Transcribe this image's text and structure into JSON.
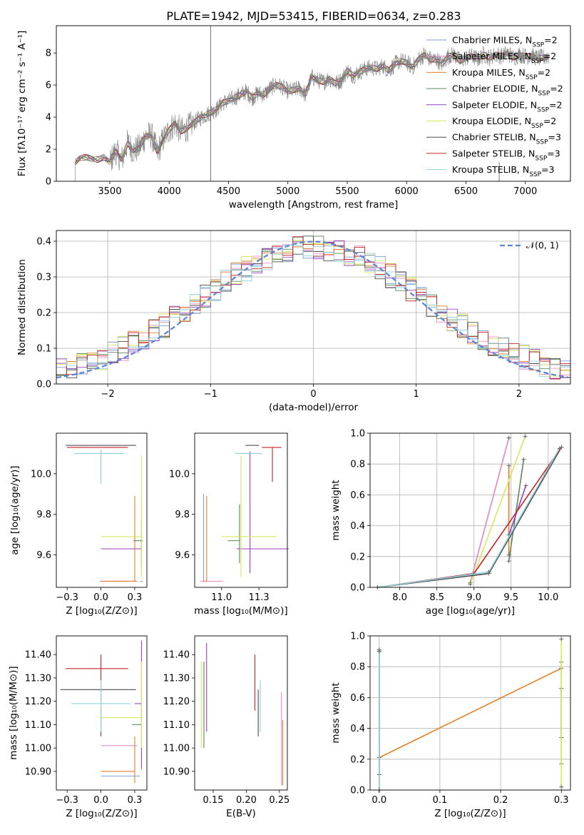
{
  "chart_data": [
    {
      "id": "spectrum",
      "type": "line",
      "title": "PLATE=1942, MJD=53415, FIBERID=0634, z=0.283",
      "xlabel": "wavelength [Angstrom, rest frame]",
      "ylabel": "Flux [fλ10⁻¹⁷ erg cm⁻² s⁻¹ A⁻¹]",
      "xlim": [
        3050,
        7380
      ],
      "ylim": [
        0,
        9.7
      ],
      "xticks": [
        3500,
        4000,
        4500,
        5000,
        5500,
        6000,
        6500,
        7000
      ],
      "yticks": [
        0,
        2,
        4,
        6,
        8
      ],
      "grid": false,
      "legend_position": "right",
      "observed": {
        "color": "#7f7f7f",
        "x": [
          3210,
          3250,
          3300,
          3350,
          3400,
          3450,
          3500,
          3550,
          3600,
          3650,
          3700,
          3750,
          3800,
          3850,
          3900,
          3950,
          4000,
          4050,
          4100,
          4150,
          4200,
          4250,
          4300,
          4350,
          4400,
          4450,
          4500,
          4550,
          4600,
          4650,
          4700,
          4750,
          4800,
          4850,
          4900,
          4950,
          5000,
          5050,
          5100,
          5150,
          5200,
          5250,
          5300,
          5350,
          5400,
          5450,
          5500,
          5550,
          5600,
          5650,
          5700,
          5750,
          5800,
          5850,
          5900,
          5950,
          6000,
          6050,
          6100,
          6150,
          6200,
          6250,
          6300,
          6350,
          6400,
          6450,
          6500,
          6550,
          6600,
          6650,
          6700,
          6750,
          6800,
          6850,
          6900,
          6950,
          7000,
          7050,
          7100,
          7150,
          7200
        ],
        "y": [
          1.2,
          1.45,
          1.5,
          1.4,
          1.35,
          1.5,
          1.2,
          1.9,
          1.3,
          2.4,
          1.9,
          2.1,
          2.8,
          2.9,
          1.8,
          2.6,
          3.2,
          3.6,
          3.1,
          3.3,
          3.6,
          3.9,
          4.1,
          4.3,
          4.5,
          4.9,
          5.0,
          5.2,
          5.4,
          5.6,
          5.2,
          5.5,
          5.4,
          5.8,
          6.0,
          5.9,
          5.6,
          5.7,
          5.8,
          5.4,
          6.5,
          6.3,
          6.2,
          6.4,
          6.1,
          6.3,
          6.9,
          6.6,
          6.8,
          7.0,
          7.1,
          7.0,
          7.2,
          6.9,
          7.3,
          7.5,
          7.4,
          7.1,
          7.6,
          7.9,
          7.6,
          7.6,
          7.3,
          7.8,
          7.9,
          7.5,
          7.7,
          7.8,
          7.6,
          7.9,
          7.7,
          7.9,
          7.8,
          8.0,
          7.7,
          7.9,
          7.8,
          7.8,
          7.7,
          7.7,
          7.8
        ]
      },
      "spikes": [
        {
          "x": 4350,
          "y": 9.7
        },
        {
          "x": 6780,
          "y": 1.2
        }
      ],
      "series": [
        {
          "name": "Chabrier MILES, N",
          "sub": "SSP",
          "suffix": "=2",
          "color": "#7f9bd8"
        },
        {
          "name": "Salpeter MILES, N",
          "sub": "SSP",
          "suffix": "=2",
          "color": "#e88fc7"
        },
        {
          "name": "Kroupa MILES, N",
          "sub": "SSP",
          "suffix": "=2",
          "color": "#e07f2a"
        },
        {
          "name": "Chabrier ELODIE, N",
          "sub": "SSP",
          "suffix": "=2",
          "color": "#5a8a5a"
        },
        {
          "name": "Salpeter ELODIE, N",
          "sub": "SSP",
          "suffix": "=2",
          "color": "#9b3fbf"
        },
        {
          "name": "Kroupa ELODIE, N",
          "sub": "SSP",
          "suffix": "=2",
          "color": "#d6e85a"
        },
        {
          "name": "Chabrier STELIB, N",
          "sub": "SSP",
          "suffix": "=3",
          "color": "#4d4d4d"
        },
        {
          "name": "Salpeter STELIB, N",
          "sub": "SSP",
          "suffix": "=3",
          "color": "#c42424"
        },
        {
          "name": "Kroupa STELIB, N",
          "sub": "SSP",
          "suffix": "=3",
          "color": "#8fd0de"
        }
      ]
    },
    {
      "id": "residuals",
      "type": "histogram",
      "xlabel": "(data-model)/error",
      "ylabel": "Normed distribution",
      "xlim": [
        -2.5,
        2.5
      ],
      "ylim": [
        0,
        0.43
      ],
      "xticks": [
        -2,
        -1,
        0,
        1,
        2
      ],
      "yticks": [
        0.0,
        0.1,
        0.2,
        0.3,
        0.4
      ],
      "grid": true,
      "bins": 50,
      "reference": {
        "name": "𝒩(0, 1)",
        "mu": 0,
        "sigma": 1,
        "color": "#5b87d6",
        "style": "dashed"
      },
      "legend_position": "top-right"
    },
    {
      "id": "age_vs_Z",
      "type": "errorbar",
      "xlabel": "Z [log₁₀(Z/Z⊙)]",
      "ylabel": "age  [log₁₀(age/yr)]",
      "xlim": [
        -0.33,
        0.34
      ],
      "ylim": [
        9.44,
        10.2
      ],
      "xticks": [
        -0.25,
        0.0,
        0.25
      ],
      "yticks": [
        9.6,
        9.8,
        10.0
      ],
      "grid": false,
      "points": [
        {
          "series": 0,
          "x": 0.29,
          "y": 9.47,
          "xerr": [
            0.0,
            0.02
          ],
          "yerr": [
            0.0,
            0.0
          ]
        },
        {
          "series": 1,
          "x": 0.0,
          "y": 9.47,
          "xerr": [
            0.01,
            0.27
          ],
          "yerr": [
            0.0,
            0.0
          ]
        },
        {
          "series": 2,
          "x": 0.25,
          "y": 9.47,
          "xerr": [
            0.25,
            0.01
          ],
          "yerr": [
            0.0,
            0.42
          ]
        },
        {
          "series": 3,
          "x": 0.3,
          "y": 9.67,
          "xerr": [
            0.06,
            0.01
          ],
          "yerr": [
            0.1,
            0.1
          ]
        },
        {
          "series": 4,
          "x": 0.3,
          "y": 9.63,
          "xerr": [
            0.3,
            0.0
          ],
          "yerr": [
            0.1,
            0.05
          ]
        },
        {
          "series": 5,
          "x": 0.3,
          "y": 9.69,
          "xerr": [
            0.3,
            0.0
          ],
          "yerr": [
            0.2,
            0.4
          ]
        },
        {
          "series": 6,
          "x": 0.0,
          "y": 10.14,
          "xerr": [
            0.26,
            0.26
          ],
          "yerr": [
            0.0,
            0.0
          ]
        },
        {
          "series": 7,
          "x": -0.02,
          "y": 10.13,
          "xerr": [
            0.23,
            0.22
          ],
          "yerr": [
            0.0,
            0.0
          ]
        },
        {
          "series": 8,
          "x": 0.0,
          "y": 10.1,
          "xerr": [
            0.2,
            0.17
          ],
          "yerr": [
            0.15,
            0.02
          ]
        }
      ]
    },
    {
      "id": "age_vs_mass",
      "type": "errorbar",
      "xlabel": "mass [log₁₀(M/M⊙)]",
      "ylabel": "",
      "xlim": [
        10.82,
        11.44
      ],
      "ylim": [
        9.44,
        10.2
      ],
      "xticks": [
        11.0,
        11.25
      ],
      "yticks": [
        9.6,
        9.8,
        10.0
      ],
      "grid": false,
      "points": [
        {
          "series": 0,
          "x": 10.88,
          "y": 9.47,
          "xerr": [
            0.0,
            0.0
          ],
          "yerr": [
            0.0,
            0.43
          ]
        },
        {
          "series": 1,
          "x": 11.01,
          "y": 9.47,
          "xerr": [
            0.15,
            0.0
          ],
          "yerr": [
            0.0,
            0.0
          ]
        },
        {
          "series": 2,
          "x": 10.9,
          "y": 9.47,
          "xerr": [
            0.02,
            0.0
          ],
          "yerr": [
            0.0,
            0.42
          ]
        },
        {
          "series": 3,
          "x": 11.12,
          "y": 9.67,
          "xerr": [
            0.08,
            0.0
          ],
          "yerr": [
            0.11,
            0.18
          ]
        },
        {
          "series": 4,
          "x": 11.19,
          "y": 9.63,
          "xerr": [
            0.09,
            0.26
          ],
          "yerr": [
            0.12,
            0.48
          ]
        },
        {
          "series": 5,
          "x": 11.13,
          "y": 9.69,
          "xerr": [
            0.13,
            0.24
          ],
          "yerr": [
            0.2,
            0.4
          ]
        },
        {
          "series": 6,
          "x": 11.25,
          "y": 10.14,
          "xerr": [
            0.09,
            0.0
          ],
          "yerr": [
            0.0,
            0.0
          ]
        },
        {
          "series": 7,
          "x": 11.34,
          "y": 10.13,
          "xerr": [
            0.07,
            0.06
          ],
          "yerr": [
            0.17,
            0.0
          ]
        },
        {
          "series": 8,
          "x": 11.19,
          "y": 10.1,
          "xerr": [
            0.1,
            0.08
          ],
          "yerr": [
            0.0,
            0.0
          ]
        }
      ]
    },
    {
      "id": "weight_vs_age",
      "type": "line",
      "xlabel": "age  [log₁₀(age/yr)]",
      "ylabel": "mass weight",
      "xlim": [
        7.6,
        10.3
      ],
      "ylim": [
        0,
        1.0
      ],
      "xticks": [
        8.0,
        8.5,
        9.0,
        9.5,
        10.0
      ],
      "yticks": [
        0.0,
        0.2,
        0.4,
        0.6,
        0.8,
        1.0
      ],
      "grid": true,
      "series_points": [
        {
          "series": 0,
          "x": [
            8.95,
            9.47
          ],
          "y": [
            0.03,
            0.97
          ]
        },
        {
          "series": 1,
          "x": [
            8.95,
            9.47
          ],
          "y": [
            0.03,
            0.97
          ]
        },
        {
          "series": 2,
          "x": [
            9.47,
            9.47
          ],
          "y": [
            0.21,
            0.79
          ]
        },
        {
          "series": 3,
          "x": [
            9.47,
            9.67
          ],
          "y": [
            0.17,
            0.83
          ]
        },
        {
          "series": 4,
          "x": [
            9.47,
            9.7
          ],
          "y": [
            0.34,
            0.66
          ]
        },
        {
          "series": 5,
          "x": [
            8.95,
            9.69
          ],
          "y": [
            0.02,
            0.98
          ]
        },
        {
          "series": 6,
          "x": [
            7.7,
            9.2,
            10.18
          ],
          "y": [
            0.0,
            0.09,
            0.91
          ]
        },
        {
          "series": 7,
          "x": [
            7.7,
            9.0,
            10.18
          ],
          "y": [
            0.0,
            0.09,
            0.91
          ]
        },
        {
          "series": 8,
          "x": [
            7.7,
            9.2,
            10.15
          ],
          "y": [
            0.0,
            0.1,
            0.9
          ]
        }
      ]
    },
    {
      "id": "mass_vs_Z",
      "type": "errorbar",
      "xlabel": "Z [log₁₀(Z/Z⊙)]",
      "ylabel": "mass [log₁₀(M/M⊙)]",
      "xlim": [
        -0.33,
        0.34
      ],
      "ylim": [
        10.82,
        11.48
      ],
      "xticks": [
        -0.25,
        0.0,
        0.25
      ],
      "yticks": [
        10.9,
        11.0,
        11.1,
        11.2,
        11.3,
        11.4
      ],
      "grid": false,
      "points": [
        {
          "series": 0,
          "x": 0.29,
          "y": 10.88,
          "xerr": [
            0.29,
            0.0
          ],
          "yerr": [
            0.0,
            0.0
          ]
        },
        {
          "series": 1,
          "x": 0.0,
          "y": 11.01,
          "xerr": [
            0.0,
            0.27
          ],
          "yerr": [
            0.0,
            0.0
          ]
        },
        {
          "series": 2,
          "x": 0.25,
          "y": 10.9,
          "xerr": [
            0.25,
            0.0
          ],
          "yerr": [
            0.05,
            0.15
          ]
        },
        {
          "series": 3,
          "x": 0.3,
          "y": 11.1,
          "xerr": [
            0.07,
            0.0
          ],
          "yerr": [
            0.0,
            0.0
          ]
        },
        {
          "series": 4,
          "x": 0.3,
          "y": 11.19,
          "xerr": [
            0.05,
            0.0
          ],
          "yerr": [
            0.28,
            0.27
          ]
        },
        {
          "series": 5,
          "x": 0.3,
          "y": 11.13,
          "xerr": [
            0.3,
            0.0
          ],
          "yerr": [
            0.13,
            0.24
          ]
        },
        {
          "series": 6,
          "x": 0.0,
          "y": 11.25,
          "xerr": [
            0.3,
            0.26
          ],
          "yerr": [
            0.2,
            0.0
          ]
        },
        {
          "series": 7,
          "x": 0.0,
          "y": 11.34,
          "xerr": [
            0.26,
            0.2
          ],
          "yerr": [
            0.1,
            0.06
          ]
        },
        {
          "series": 8,
          "x": 0.0,
          "y": 11.19,
          "xerr": [
            0.22,
            0.22
          ],
          "yerr": [
            0.12,
            0.1
          ]
        }
      ]
    },
    {
      "id": "mass_vs_ebv",
      "type": "errorbar",
      "xlabel": "E(B-V)",
      "ylabel": "",
      "xlim": [
        0.122,
        0.262
      ],
      "ylim": [
        10.82,
        11.48
      ],
      "xticks": [
        0.15,
        0.2,
        0.25
      ],
      "yticks": [
        10.9,
        11.0,
        11.1,
        11.2,
        11.3,
        11.4
      ],
      "grid": false,
      "points": [
        {
          "series": 0,
          "x": 0.253,
          "y": 10.88,
          "xerr": [
            0.0,
            0.0
          ],
          "yerr": [
            0.0,
            0.0
          ]
        },
        {
          "series": 1,
          "x": 0.253,
          "y": 11.01,
          "xerr": [
            0.0,
            0.0
          ],
          "yerr": [
            0.17,
            0.23
          ]
        },
        {
          "series": 2,
          "x": 0.255,
          "y": 10.9,
          "xerr": [
            0.0,
            0.0
          ],
          "yerr": [
            0.06,
            0.22
          ]
        },
        {
          "series": 3,
          "x": 0.136,
          "y": 11.1,
          "xerr": [
            0.0,
            0.0
          ],
          "yerr": [
            0.1,
            0.27
          ]
        },
        {
          "series": 4,
          "x": 0.14,
          "y": 11.19,
          "xerr": [
            0.0,
            0.0
          ],
          "yerr": [
            0.12,
            0.26
          ]
        },
        {
          "series": 5,
          "x": 0.132,
          "y": 11.13,
          "xerr": [
            0.0,
            0.0
          ],
          "yerr": [
            0.13,
            0.24
          ]
        },
        {
          "series": 6,
          "x": 0.218,
          "y": 11.25,
          "xerr": [
            0.0,
            0.0
          ],
          "yerr": [
            0.2,
            0.0
          ]
        },
        {
          "series": 7,
          "x": 0.213,
          "y": 11.34,
          "xerr": [
            0.0,
            0.0
          ],
          "yerr": [
            0.18,
            0.06
          ]
        },
        {
          "series": 8,
          "x": 0.221,
          "y": 11.19,
          "xerr": [
            0.0,
            0.0
          ],
          "yerr": [
            0.12,
            0.1
          ]
        }
      ]
    },
    {
      "id": "weight_vs_Z",
      "type": "line",
      "xlabel": "Z [log₁₀(Z/Z⊙)]",
      "ylabel": "mass weight",
      "xlim": [
        -0.015,
        0.315
      ],
      "ylim": [
        0,
        1.0
      ],
      "xticks": [
        0.0,
        0.1,
        0.2,
        0.3
      ],
      "yticks": [
        0.0,
        0.2,
        0.4,
        0.6,
        0.8,
        1.0
      ],
      "grid": true,
      "series_points": [
        {
          "series": 0,
          "x": [
            0.0,
            0.0
          ],
          "y": [
            0.1,
            0.9
          ]
        },
        {
          "series": 1,
          "x": [
            0.0,
            0.0
          ],
          "y": [
            0.1,
            0.9
          ]
        },
        {
          "series": 2,
          "x": [
            0.0,
            0.3
          ],
          "y": [
            0.21,
            0.79
          ]
        },
        {
          "series": 3,
          "x": [
            0.3,
            0.3
          ],
          "y": [
            0.17,
            0.83
          ]
        },
        {
          "series": 4,
          "x": [
            0.3,
            0.3
          ],
          "y": [
            0.34,
            0.66
          ]
        },
        {
          "series": 5,
          "x": [
            0.3,
            0.3
          ],
          "y": [
            0.02,
            0.98
          ]
        },
        {
          "series": 6,
          "x": [
            0.0,
            0.0
          ],
          "y": [
            0.0,
            0.91
          ]
        },
        {
          "series": 7,
          "x": [
            0.0,
            0.0
          ],
          "y": [
            0.0,
            0.91
          ]
        },
        {
          "series": 8,
          "x": [
            0.0,
            0.0
          ],
          "y": [
            0.0,
            0.9
          ]
        }
      ]
    }
  ]
}
